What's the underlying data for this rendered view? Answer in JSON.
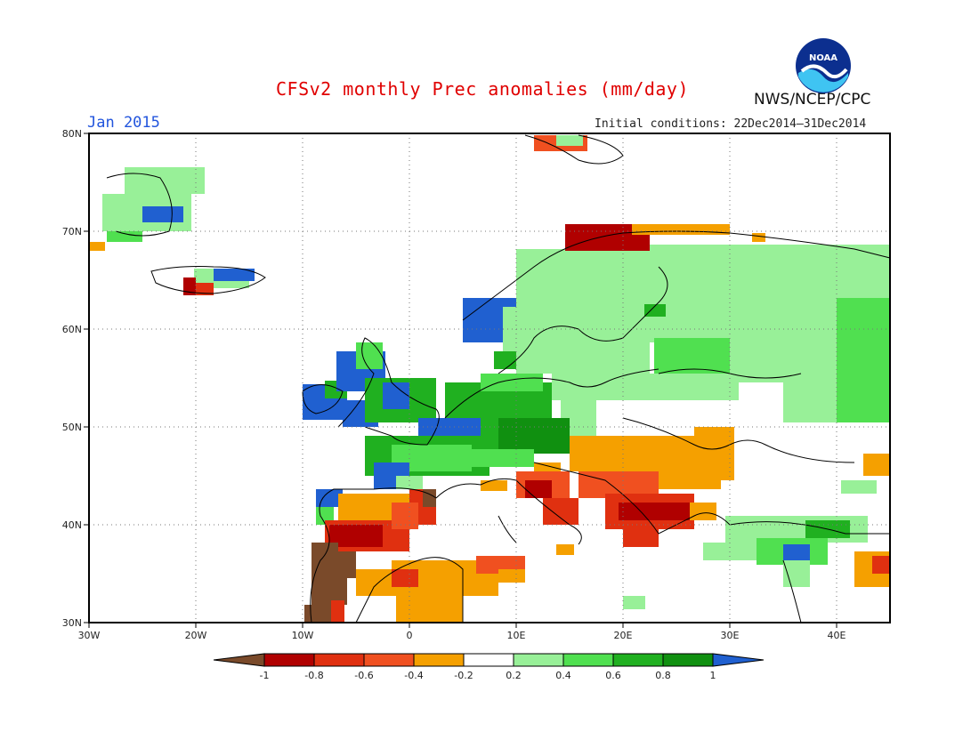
{
  "header": {
    "title": "CFSv2 monthly Prec anomalies (mm/day)",
    "month": "Jan 2015",
    "initial_conditions": "Initial conditions: 22Dec2014–31Dec2014",
    "agency": "NWS/NCEP/CPC",
    "logo_text": "NOAA"
  },
  "map": {
    "lon_range": [
      -30,
      45
    ],
    "lat_range": [
      30,
      80
    ],
    "lat_labels": [
      "80N",
      "70N",
      "60N",
      "50N",
      "40N",
      "30N"
    ],
    "lon_labels": [
      "30W",
      "20W",
      "10W",
      "0",
      "10E",
      "20E",
      "30E",
      "40E"
    ],
    "colors": {
      "brown": "#7a4a2a",
      "dark_red": "#b00000",
      "red": "#e03010",
      "orange_red": "#f05020",
      "orange": "#f5a000",
      "white": "#ffffff",
      "light_green": "#98f098",
      "green": "#50e050",
      "mid_green": "#20b020",
      "dark_green": "#109010",
      "blue": "#2060d0"
    }
  },
  "legend": {
    "ticks": [
      "-1",
      "-0.8",
      "-0.6",
      "-0.4",
      "-0.2",
      "0.2",
      "0.4",
      "0.6",
      "0.8",
      "1"
    ]
  }
}
